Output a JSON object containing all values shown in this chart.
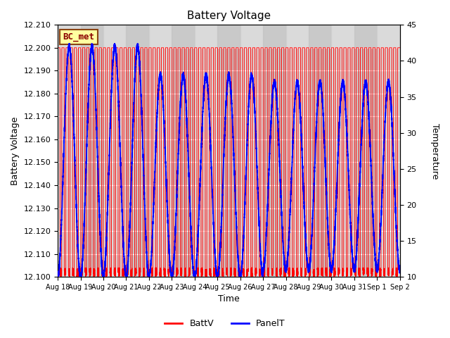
{
  "title": "Battery Voltage",
  "xlabel": "Time",
  "ylabel_left": "Battery Voltage",
  "ylabel_right": "Temperature",
  "ylim_left": [
    12.1,
    12.21
  ],
  "ylim_right": [
    10,
    45
  ],
  "yticks_left": [
    12.1,
    12.11,
    12.12,
    12.13,
    12.14,
    12.15,
    12.16,
    12.17,
    12.18,
    12.19,
    12.2,
    12.21
  ],
  "yticks_right": [
    10,
    15,
    20,
    25,
    30,
    35,
    40,
    45
  ],
  "xtick_positions": [
    0,
    1,
    2,
    3,
    4,
    5,
    6,
    7,
    8,
    9,
    10,
    11,
    12,
    13,
    14,
    15
  ],
  "xtick_labels": [
    "Aug 18",
    "Aug 19",
    "Aug 20",
    "Aug 21",
    "Aug 22",
    "Aug 23",
    "Aug 24",
    "Aug 25",
    "Aug 26",
    "Aug 27",
    "Aug 28",
    "Aug 29",
    "Aug 30",
    "Aug 31",
    "Sep 1",
    "Sep 2"
  ],
  "batt_color": "#FF0000",
  "panel_color": "#0000FF",
  "bg_plot": "#D8D8D8",
  "legend_label_batt": "BattV",
  "legend_label_panel": "PanelT",
  "watermark_text": "BC_met",
  "watermark_bg": "#FFFFA0",
  "watermark_fg": "#8B0000",
  "n_days": 15
}
